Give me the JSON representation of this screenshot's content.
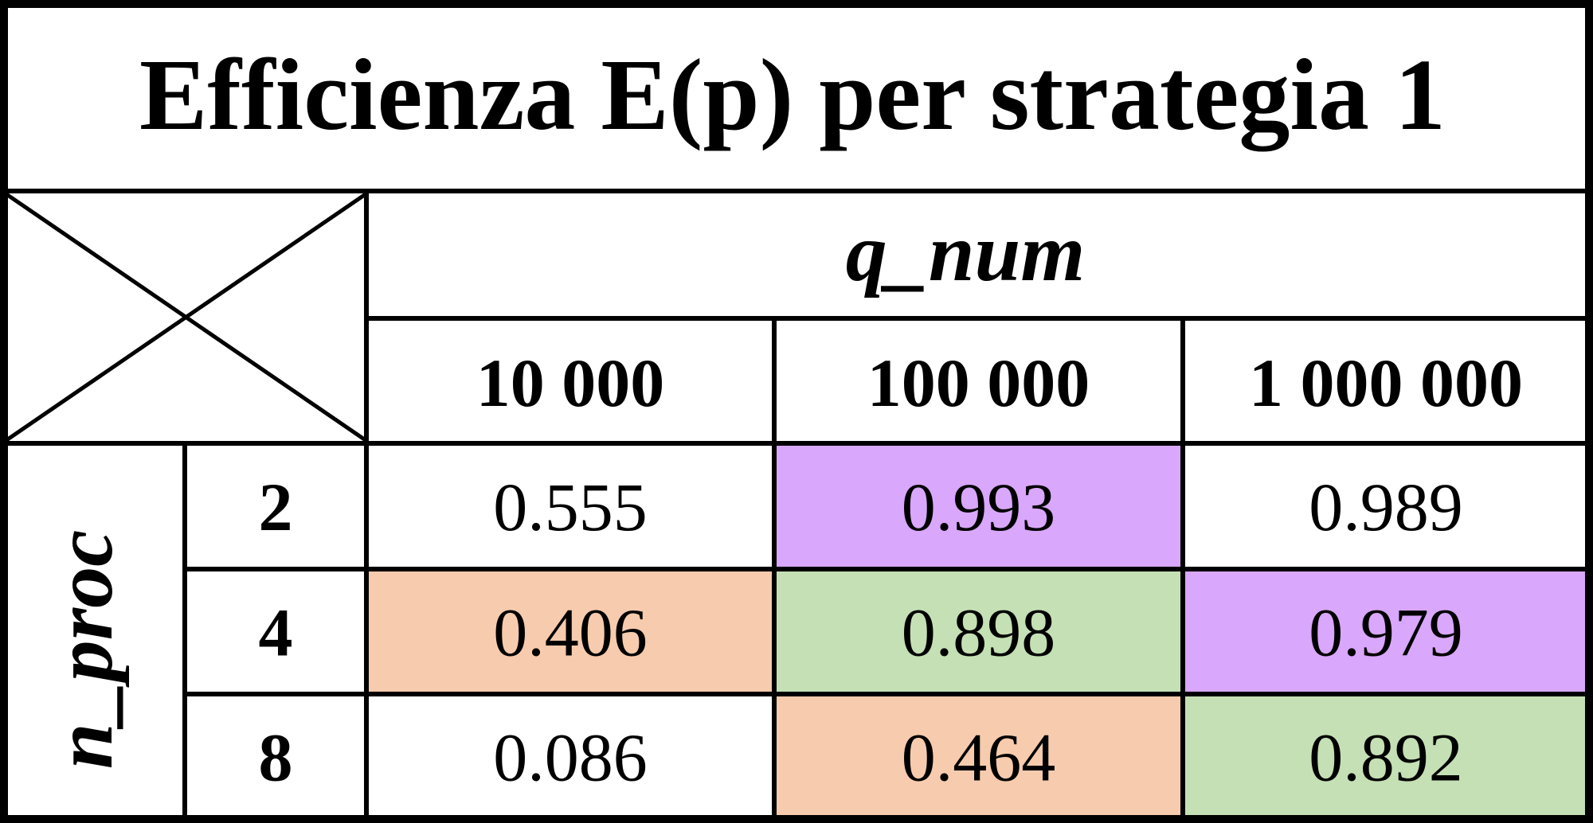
{
  "chart_data": {
    "type": "table",
    "title": "Efficienza E(p) per strategia 1",
    "column_axis_label": "q_num",
    "row_axis_label": "n_proc",
    "columns": [
      "10 000",
      "100 000",
      "1 000 000"
    ],
    "rows": [
      {
        "label": "2",
        "values": [
          0.555,
          0.993,
          0.989
        ],
        "display": [
          "0.555",
          "0.993",
          "0.989"
        ],
        "fills": [
          "#ffffff",
          "#d9a7fc",
          "#ffffff"
        ]
      },
      {
        "label": "4",
        "values": [
          0.406,
          0.898,
          0.979
        ],
        "display": [
          "0.406",
          "0.898",
          "0.979"
        ],
        "fills": [
          "#f7cbad",
          "#c5e0b4",
          "#d9a7fc"
        ]
      },
      {
        "label": "8",
        "values": [
          0.086,
          0.464,
          0.892
        ],
        "display": [
          "0.086",
          "0.464",
          "0.892"
        ],
        "fills": [
          "#ffffff",
          "#f7cbad",
          "#c5e0b4"
        ]
      }
    ],
    "colors": {
      "purple": "#d9a7fc",
      "orange": "#f7cbad",
      "green": "#c5e0b4",
      "border": "#000000"
    }
  }
}
